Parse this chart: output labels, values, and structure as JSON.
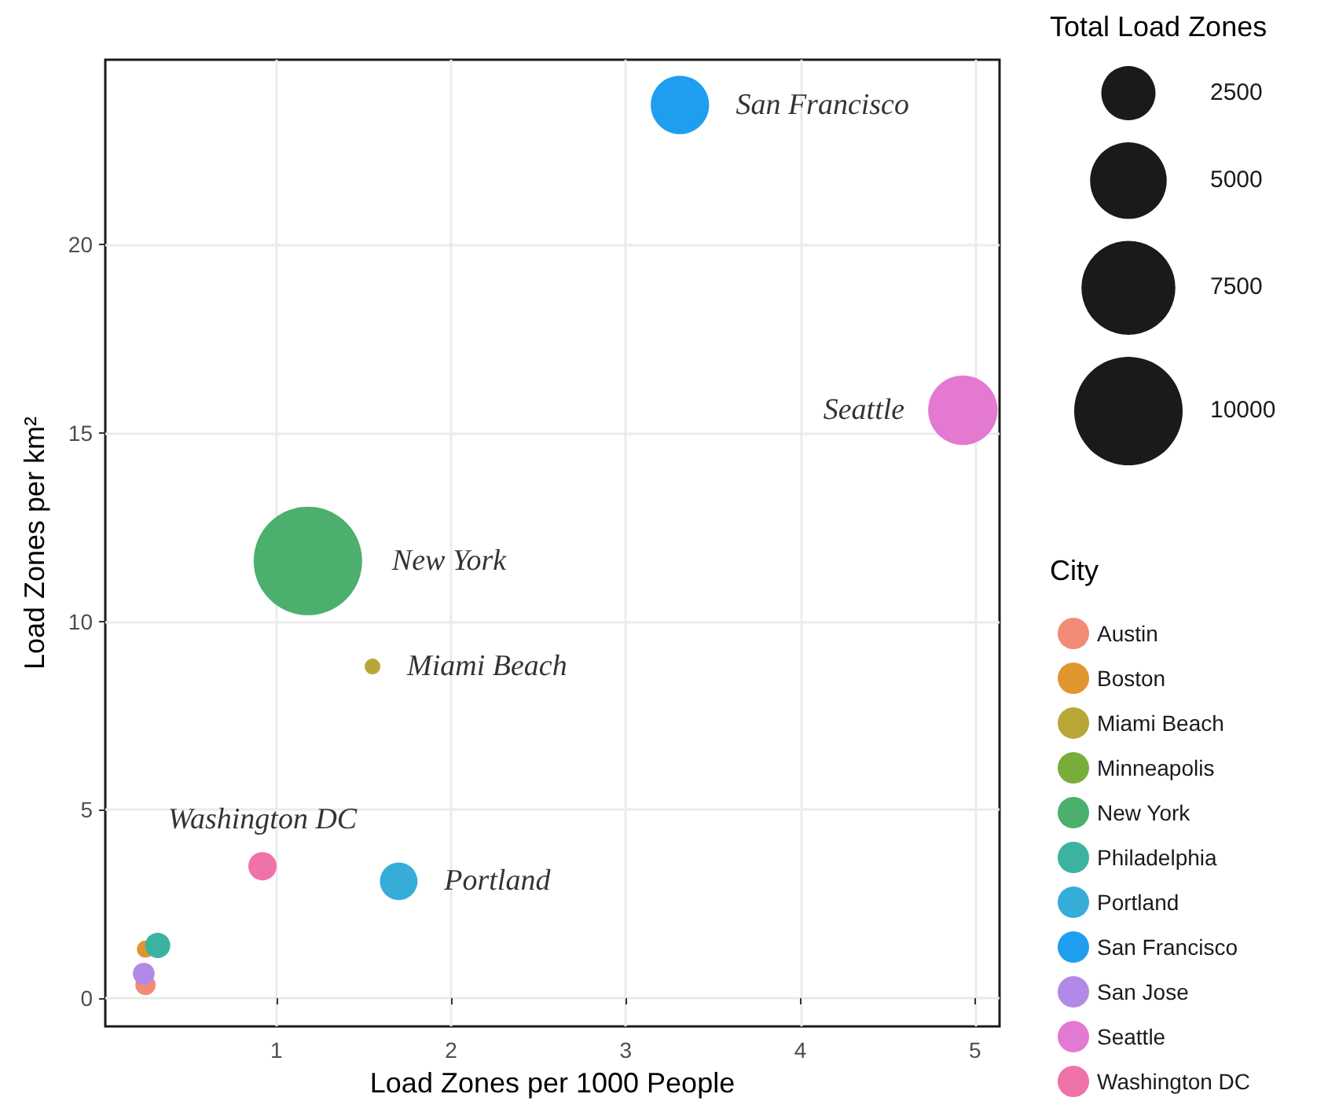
{
  "chart_data": {
    "type": "bubble",
    "xlabel": "Load Zones per 1000 People",
    "ylabel": "Load Zones per km²",
    "legend_title": "City",
    "size_legend": [
      2500,
      5000,
      7500,
      10000
    ],
    "xlim": [
      0.02,
      5.14
    ],
    "xticks": [
      1,
      2,
      3,
      4,
      5
    ],
    "ylim": [
      -0.75,
      24.9
    ],
    "yticks": [
      0,
      5,
      10,
      15,
      20
    ],
    "grid": true,
    "legend": "right",
    "marker": "circle",
    "series": [
      {
        "name": "Austin",
        "color": "#f28a78",
        "x": [
          0.25
        ],
        "values": [
          0.35
        ],
        "sizes": [
          350
        ]
      },
      {
        "name": "Boston",
        "color": "#e0962e",
        "x": [
          0.25
        ],
        "values": [
          1.3
        ],
        "sizes": [
          250
        ]
      },
      {
        "name": "Miami Beach",
        "color": "#b8a637",
        "x": [
          1.55
        ],
        "values": [
          8.8
        ],
        "sizes": [
          210
        ]
      },
      {
        "name": "Minneapolis",
        "color": "#78ad3a",
        "x": [
          null
        ],
        "values": [
          null
        ],
        "sizes": [
          null
        ]
      },
      {
        "name": "New York",
        "color": "#4caf6d",
        "x": [
          1.18
        ],
        "values": [
          11.6
        ],
        "sizes": [
          10000
        ]
      },
      {
        "name": "Philadelphia",
        "color": "#3bb3a0",
        "x": [
          0.32
        ],
        "values": [
          1.4
        ],
        "sizes": [
          540
        ]
      },
      {
        "name": "Portland",
        "color": "#36acd8",
        "x": [
          1.7
        ],
        "values": [
          3.1
        ],
        "sizes": [
          1200
        ]
      },
      {
        "name": "San Francisco",
        "color": "#1f9ef0",
        "x": [
          3.31
        ],
        "values": [
          23.7
        ],
        "sizes": [
          2900
        ]
      },
      {
        "name": "San Jose",
        "color": "#b18ae8",
        "x": [
          0.24
        ],
        "values": [
          0.65
        ],
        "sizes": [
          410
        ]
      },
      {
        "name": "Seattle",
        "color": "#e379d0",
        "x": [
          4.93
        ],
        "values": [
          15.6
        ],
        "sizes": [
          4100
        ]
      },
      {
        "name": "Washington DC",
        "color": "#ef72a9",
        "x": [
          0.92
        ],
        "values": [
          3.5
        ],
        "sizes": [
          680
        ]
      }
    ],
    "annotations": [
      {
        "text": "San Francisco",
        "x": 3.31,
        "y": 23.7
      },
      {
        "text": "Seattle",
        "x": 4.93,
        "y": 15.6
      },
      {
        "text": "New York",
        "x": 1.18,
        "y": 11.6
      },
      {
        "text": "Miami Beach",
        "x": 1.55,
        "y": 8.8
      },
      {
        "text": "Washington DC",
        "x": 0.92,
        "y": 3.5
      },
      {
        "text": "Portland",
        "x": 1.7,
        "y": 3.1
      },
      "Total Load Zones"
    ]
  }
}
